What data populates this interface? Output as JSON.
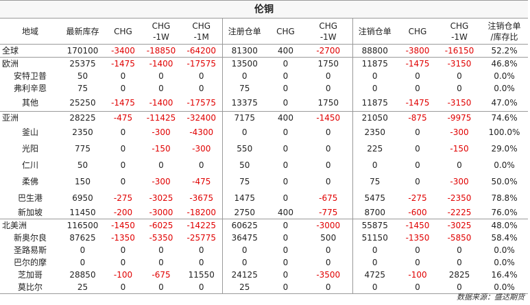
{
  "title": "伦铜",
  "headers": [
    "地域",
    "最新库存",
    "CHG",
    "CHG\n-1W",
    "CHG\n-1M",
    "注册仓单",
    "CHG",
    "CHG\n-1W",
    "注销仓单",
    "CHG",
    "CHG\n-1W",
    "注销仓单\n/库存比"
  ],
  "rows": [
    {
      "region": "全球",
      "level": 0,
      "cells": [
        "170100",
        "-3400",
        "-18850",
        "-64200",
        "81300",
        "400",
        "-2700",
        "88800",
        "-3800",
        "-16150",
        "52.2%"
      ]
    },
    {
      "region": "欧洲",
      "level": 0,
      "cells": [
        "25375",
        "-1475",
        "-1400",
        "-17575",
        "13500",
        "0",
        "1750",
        "11875",
        "-1475",
        "-3150",
        "46.8%"
      ]
    },
    {
      "region": "安特卫普",
      "level": 1,
      "cells": [
        "50",
        "0",
        "0",
        "0",
        "0",
        "0",
        "0",
        "0",
        "0",
        "0",
        "0.0%"
      ]
    },
    {
      "region": "弗利辛恩",
      "level": 1,
      "cells": [
        "75",
        "0",
        "0",
        "0",
        "75",
        "0",
        "0",
        "0",
        "0",
        "0",
        "0.0%"
      ]
    },
    {
      "region": "其他",
      "level": 1,
      "cells": [
        "25250",
        "-1475",
        "-1400",
        "-17575",
        "13375",
        "0",
        "1750",
        "11875",
        "-1475",
        "-3150",
        "47.0%"
      ]
    },
    {
      "region": "亚洲",
      "level": 0,
      "cells": [
        "28225",
        "-475",
        "-11425",
        "-32400",
        "7175",
        "400",
        "-1450",
        "21050",
        "-875",
        "-9975",
        "74.6%"
      ]
    },
    {
      "region": "釜山",
      "level": 1,
      "cells": [
        "2350",
        "0",
        "-300",
        "-4300",
        "0",
        "0",
        "0",
        "2350",
        "0",
        "-300",
        "100.0%"
      ]
    },
    {
      "region": "光阳",
      "level": 1,
      "cells": [
        "775",
        "0",
        "-150",
        "-300",
        "550",
        "0",
        "0",
        "225",
        "0",
        "-150",
        "29.0%"
      ]
    },
    {
      "region": "仁川",
      "level": 1,
      "cells": [
        "50",
        "0",
        "0",
        "0",
        "50",
        "0",
        "0",
        "0",
        "0",
        "0",
        "0.0%"
      ]
    },
    {
      "region": "柔佛",
      "level": 1,
      "cells": [
        "150",
        "0",
        "-300",
        "-475",
        "75",
        "0",
        "0",
        "75",
        "0",
        "-300",
        "50.0%"
      ]
    },
    {
      "region": "巴生港",
      "level": 1,
      "cells": [
        "6950",
        "-275",
        "-3025",
        "-3675",
        "1475",
        "0",
        "-675",
        "5475",
        "-275",
        "-2350",
        "78.8%"
      ]
    },
    {
      "region": "新加坡",
      "level": 1,
      "cells": [
        "11450",
        "-200",
        "-3000",
        "-18200",
        "2750",
        "400",
        "-775",
        "8700",
        "-600",
        "-2225",
        "76.0%"
      ]
    },
    {
      "region": "北美洲",
      "level": 0,
      "cells": [
        "116500",
        "-1450",
        "-6025",
        "-14225",
        "60625",
        "0",
        "-3000",
        "55875",
        "-1450",
        "-3025",
        "48.0%"
      ]
    },
    {
      "region": "新奥尔良",
      "level": 1,
      "cells": [
        "87625",
        "-1350",
        "-5350",
        "-25775",
        "36475",
        "0",
        "500",
        "51150",
        "-1350",
        "-5850",
        "58.4%"
      ]
    },
    {
      "region": "圣路易斯",
      "level": 1,
      "cells": [
        "0",
        "0",
        "0",
        "0",
        "0",
        "0",
        "0",
        "0",
        "0",
        "0",
        "0.0%"
      ]
    },
    {
      "region": "巴尔的摩",
      "level": 1,
      "cells": [
        "0",
        "0",
        "0",
        "0",
        "0",
        "0",
        "0",
        "0",
        "0",
        "0",
        "0.0%"
      ]
    },
    {
      "region": "芝加哥",
      "level": 1,
      "cells": [
        "28850",
        "-100",
        "-675",
        "11550",
        "24125",
        "0",
        "-3500",
        "4725",
        "-100",
        "2825",
        "16.4%"
      ]
    },
    {
      "region": "莫比尔",
      "level": 1,
      "cells": [
        "25",
        "0",
        "0",
        "0",
        "25",
        "0",
        "0",
        "0",
        "0",
        "0",
        "0.0%"
      ]
    }
  ],
  "source": "数据来源：盛达期货",
  "colors": {
    "negative": "#e00000",
    "text": "#222222",
    "border": "#999999"
  }
}
